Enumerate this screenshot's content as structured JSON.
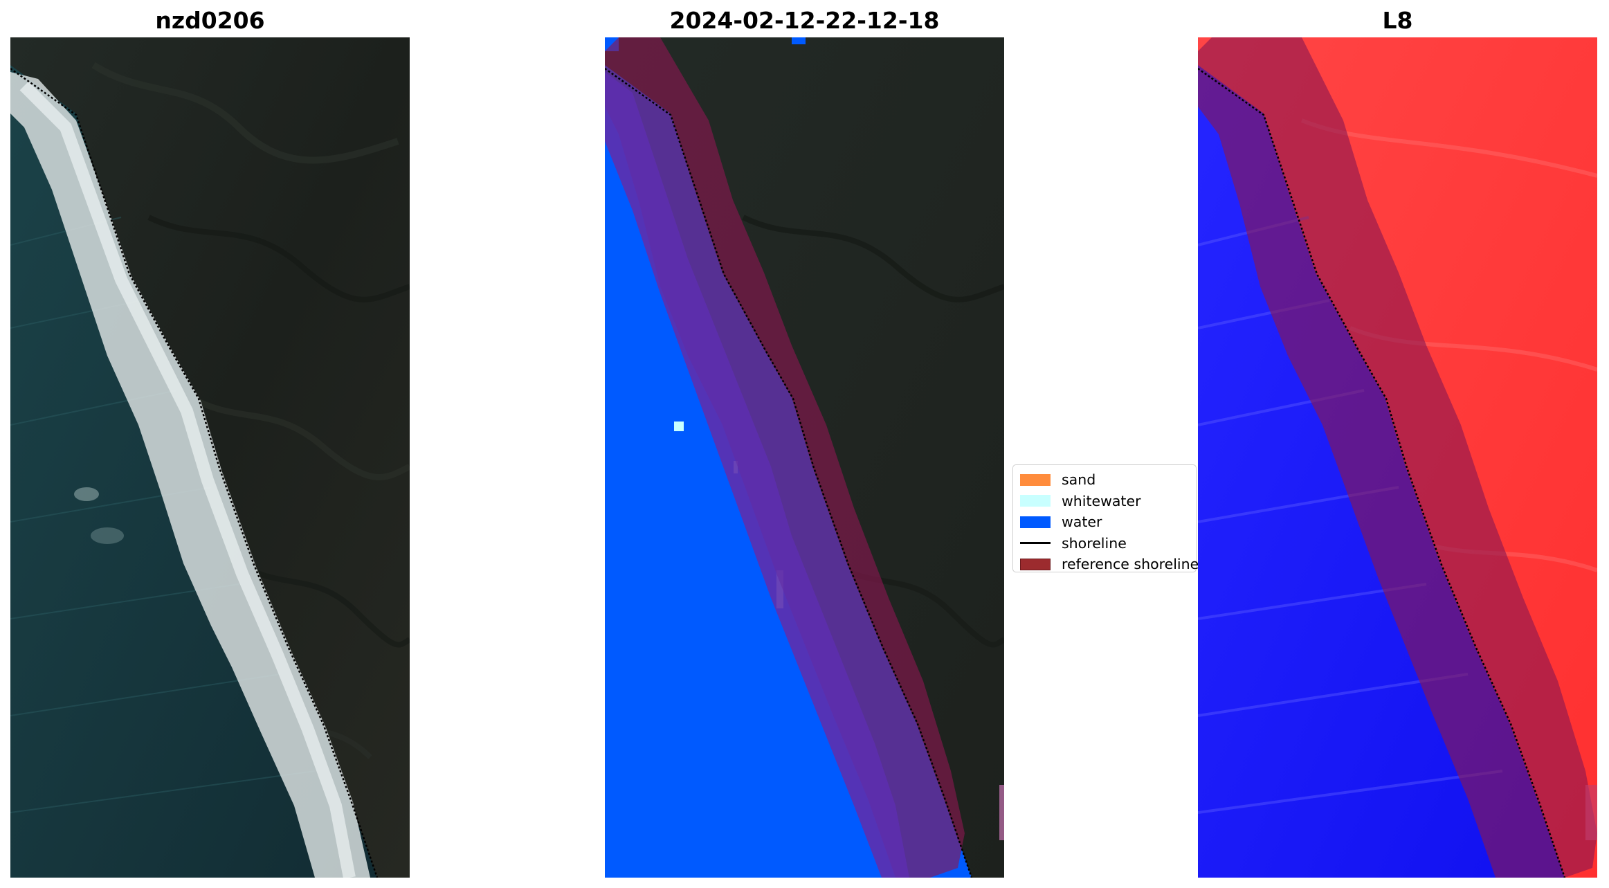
{
  "panels": [
    {
      "title": "nzd0206"
    },
    {
      "title": "2024-02-12-22-12-18"
    },
    {
      "title": "L8"
    }
  ],
  "legend": {
    "items": [
      {
        "label": "sand",
        "kind": "patch",
        "color": "#ff8c3c"
      },
      {
        "label": "whitewater",
        "kind": "patch",
        "color": "#c8ffff"
      },
      {
        "label": "water",
        "kind": "patch",
        "color": "#005aff"
      },
      {
        "label": "shoreline",
        "kind": "line",
        "color": "#000000"
      },
      {
        "label": "reference shoreline",
        "kind": "patch",
        "color": "#9c2b2e"
      }
    ]
  },
  "colors": {
    "land_dark": "#1f2420",
    "ocean_dark": "#173a40",
    "surf_white": "#e6ecec",
    "class_water": "#005aff",
    "class_whitewater": "#c8ffff",
    "buffer_overlay": "#8b1650",
    "index_positive": "#ff3b3b",
    "index_negative": "#1a1aff"
  }
}
